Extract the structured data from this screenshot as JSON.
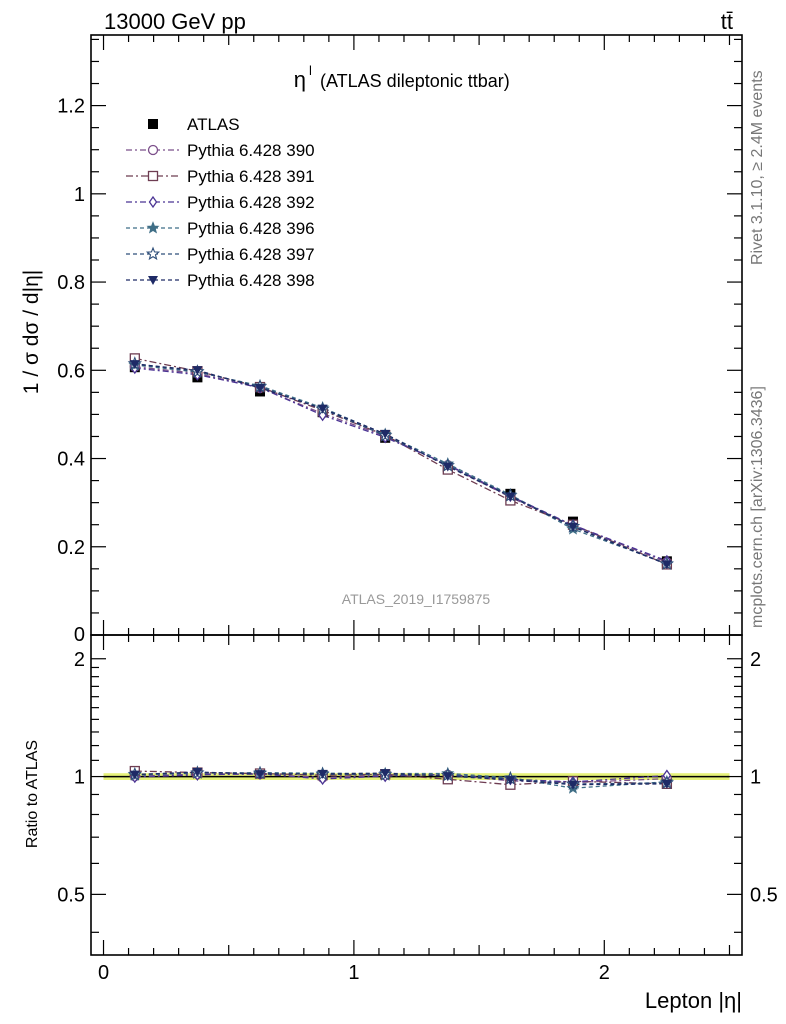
{
  "header": {
    "energy_label": "13000 GeV pp",
    "process_label": "tt̄"
  },
  "side_labels": {
    "rivet": "Rivet 3.1.10, ≥ 2.4M events",
    "mcplots": "mcplots.cern.ch [arXiv:1306.3436]"
  },
  "chart_data": {
    "type": "line",
    "title_symbol": "η",
    "title_superscript": "l",
    "title": "(ATLAS dileptonic ttbar)",
    "analysis_label": "ATLAS_2019_I1759875",
    "xlabel": "Lepton |η|",
    "ylabel": "1 / σ  dσ / d|η|",
    "ratio_ylabel": "Ratio to ATLAS",
    "xlim": [
      -0.05,
      2.55
    ],
    "ylim": [
      0,
      1.36
    ],
    "ratio_ylim": [
      0.35,
      2.3
    ],
    "x_ticks": [
      "0",
      "1",
      "2"
    ],
    "y_ticks": [
      "0.2",
      "0.4",
      "0.6",
      "0.8",
      "1",
      "1.2"
    ],
    "ratio_ticks": [
      "0.5",
      "1",
      "2"
    ],
    "legend_position": "top-left",
    "x": [
      0.125,
      0.375,
      0.625,
      0.875,
      1.125,
      1.375,
      1.625,
      1.875,
      2.25
    ],
    "data": {
      "name": "ATLAS",
      "values": [
        0.607,
        0.584,
        0.552,
        0.505,
        0.447,
        0.381,
        0.32,
        0.257,
        0.167
      ]
    },
    "series": [
      {
        "name": "Pythia 6.428 390",
        "color": "#7b4f8a",
        "marker": "circle-open",
        "values": [
          0.608,
          0.593,
          0.56,
          0.502,
          0.451,
          0.385,
          0.312,
          0.248,
          0.165
        ]
      },
      {
        "name": "Pythia 6.428 391",
        "color": "#6e3d52",
        "marker": "square-open",
        "values": [
          0.627,
          0.598,
          0.562,
          0.509,
          0.453,
          0.375,
          0.305,
          0.25,
          0.16
        ]
      },
      {
        "name": "Pythia 6.428 392",
        "color": "#4b3494",
        "marker": "diamond-open",
        "values": [
          0.605,
          0.59,
          0.561,
          0.498,
          0.448,
          0.386,
          0.315,
          0.249,
          0.168
        ]
      },
      {
        "name": "Pythia 6.428 396",
        "color": "#3f6e86",
        "marker": "star-filled",
        "values": [
          0.612,
          0.596,
          0.565,
          0.515,
          0.455,
          0.388,
          0.318,
          0.24,
          0.162
        ]
      },
      {
        "name": "Pythia 6.428 397",
        "color": "#2f4f7a",
        "marker": "star-open",
        "values": [
          0.615,
          0.597,
          0.563,
          0.512,
          0.452,
          0.384,
          0.316,
          0.246,
          0.161
        ]
      },
      {
        "name": "Pythia 6.428 398",
        "color": "#1e2a66",
        "marker": "triangle-down-filled",
        "values": [
          0.614,
          0.6,
          0.56,
          0.513,
          0.456,
          0.382,
          0.314,
          0.245,
          0.16
        ]
      }
    ]
  }
}
